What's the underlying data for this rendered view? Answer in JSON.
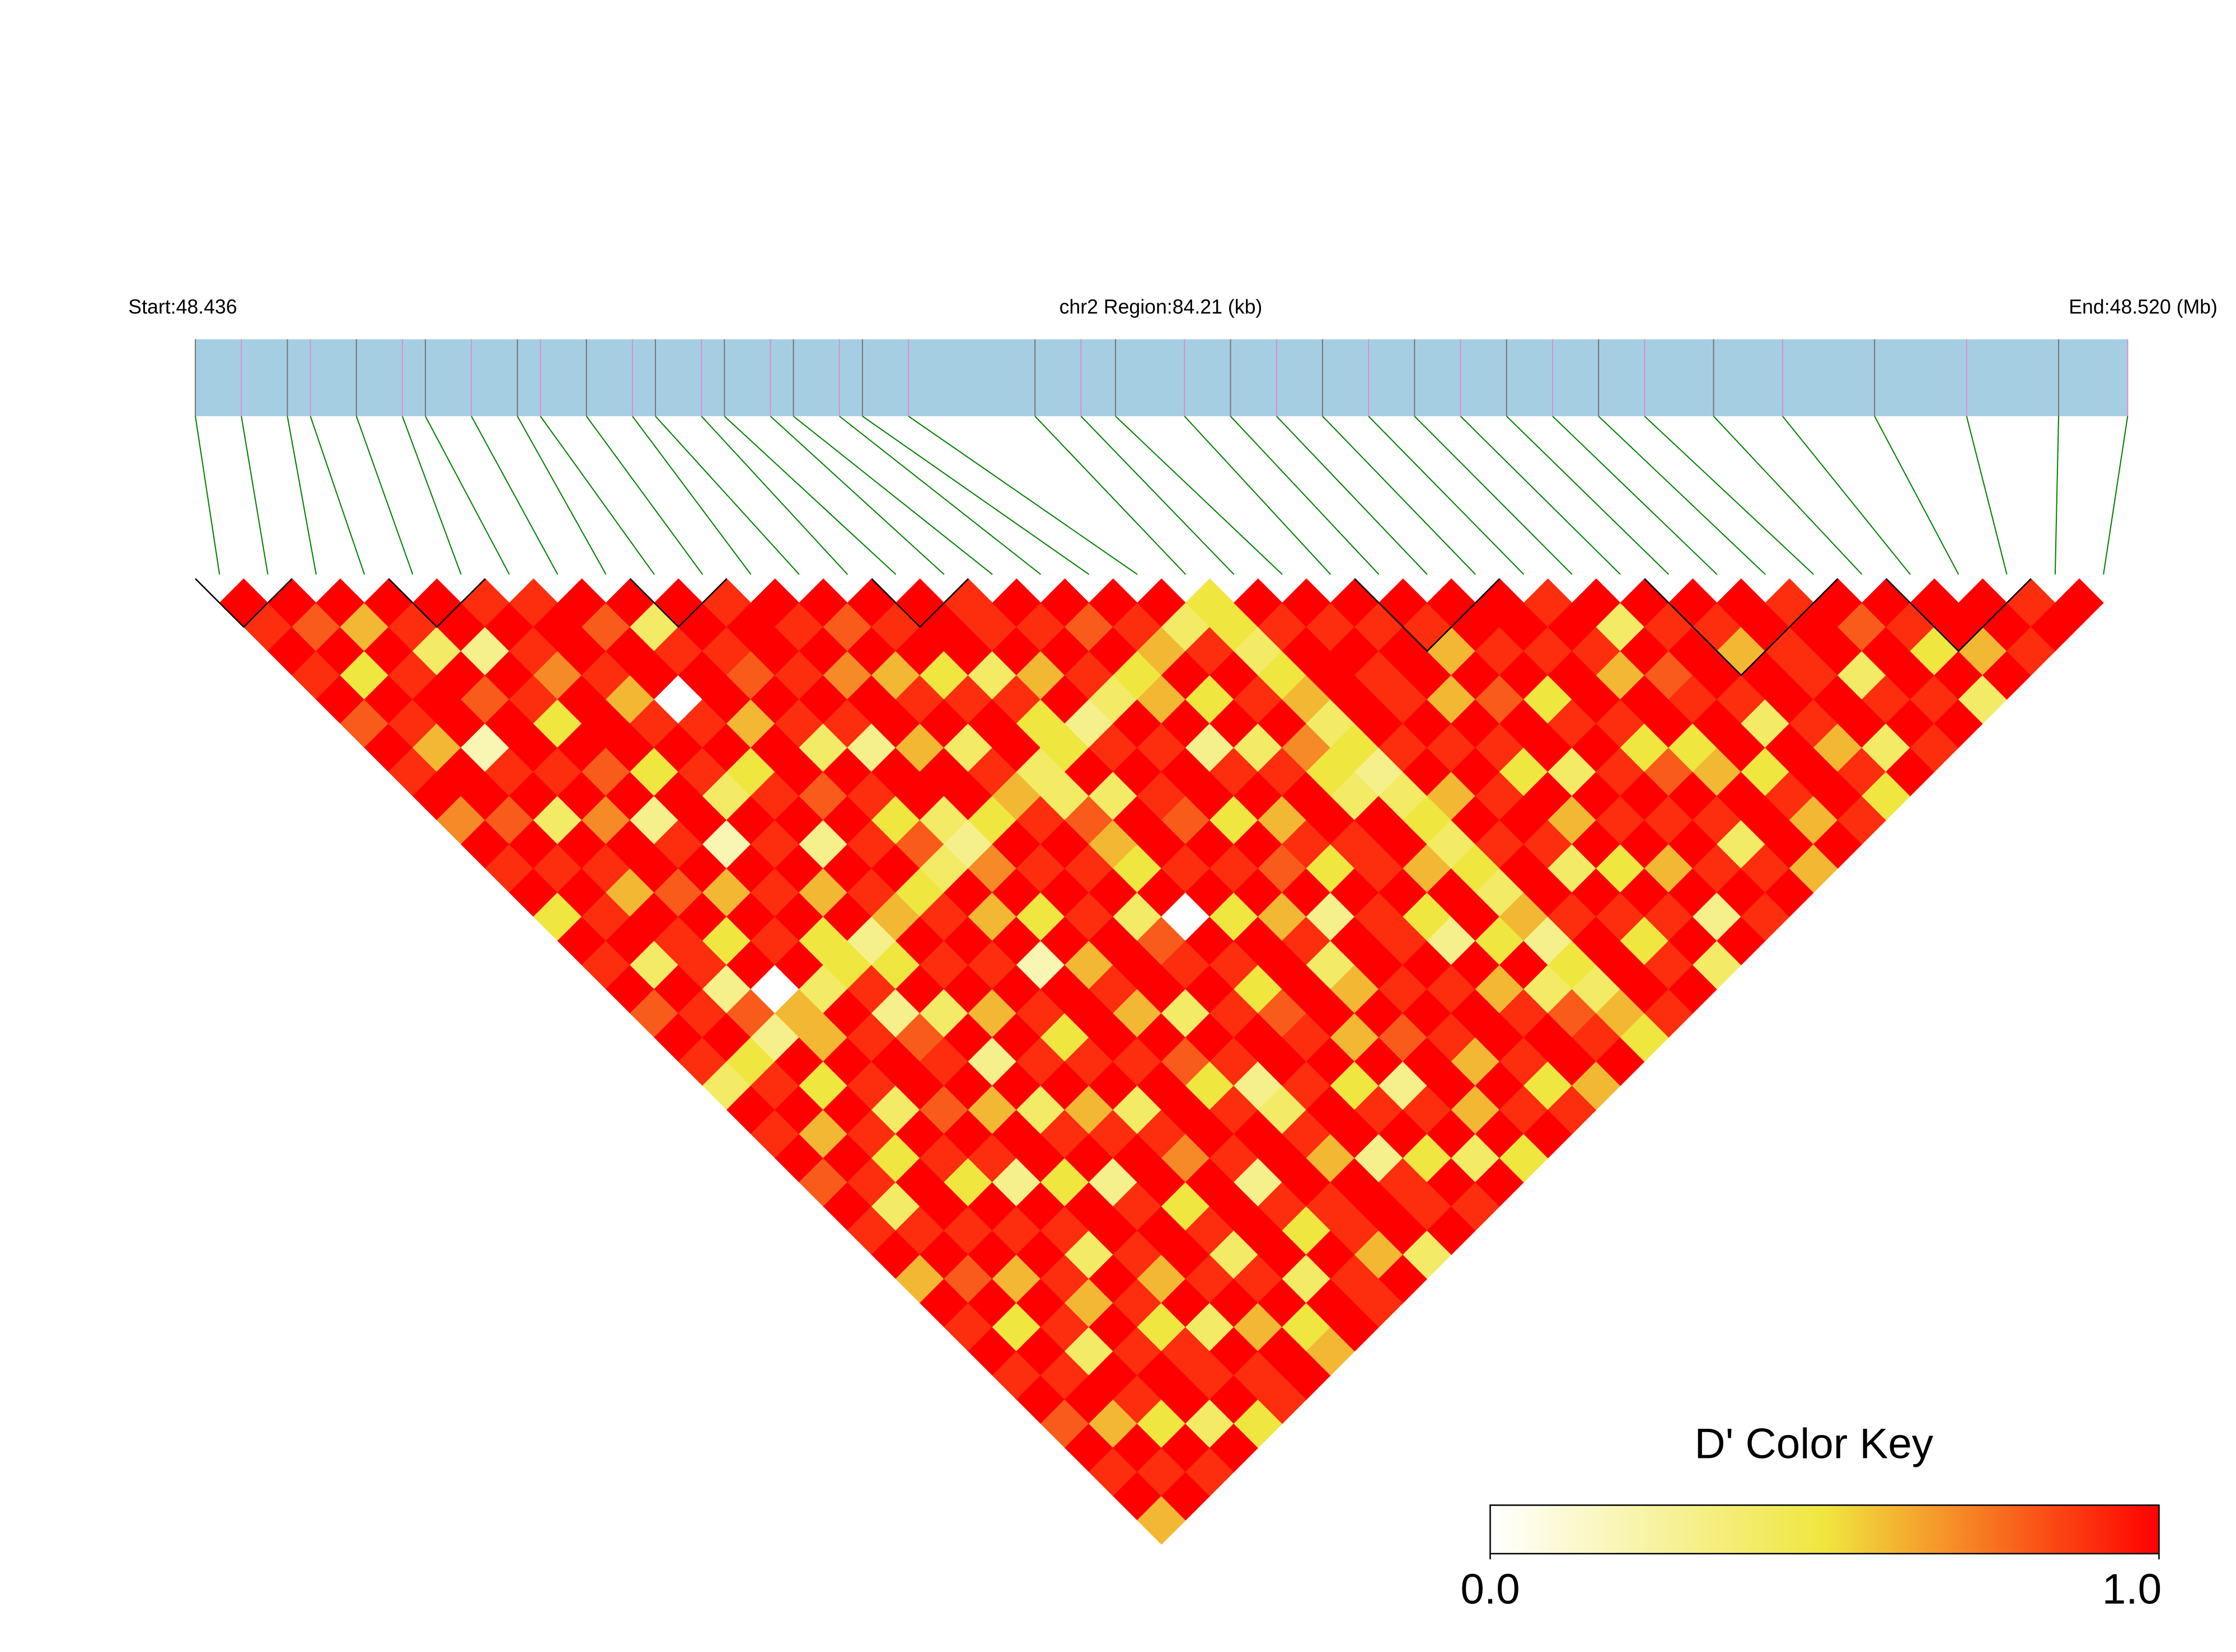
{
  "chart_data": {
    "type": "heatmap",
    "title": "chr2 Region:84.21 (kb)",
    "start_label": "Start:48.436",
    "end_label": "End:48.520 (Mb)",
    "xlim": [
      48.436,
      48.52
    ],
    "x": [
      48.436,
      48.438,
      48.44,
      48.441,
      48.443,
      48.445,
      48.446,
      48.448,
      48.45,
      48.451,
      48.453,
      48.455,
      48.456,
      48.458,
      48.459,
      48.461,
      48.462,
      48.464,
      48.465,
      48.467,
      48.4725,
      48.4745,
      48.476,
      48.479,
      48.481,
      48.483,
      48.485,
      48.487,
      48.489,
      48.491,
      48.493,
      48.495,
      48.497,
      48.499,
      48.502,
      48.505,
      48.509,
      48.513,
      48.517,
      48.52
    ],
    "matrix": [
      [
        1
      ],
      [
        0.9,
        1
      ],
      [
        1,
        0.8,
        1
      ],
      [
        0.9,
        1,
        0.6,
        1
      ],
      [
        1,
        0.5,
        1,
        0.9,
        1
      ],
      [
        0.8,
        1,
        0.9,
        0.4,
        1,
        0.9
      ],
      [
        1,
        0.9,
        1,
        1,
        0.3,
        1,
        0.9
      ],
      [
        0.9,
        0.6,
        1,
        0.8,
        1,
        0.9,
        1,
        1
      ],
      [
        1,
        1,
        0.2,
        1,
        0.9,
        0.7,
        1,
        0.8,
        1
      ],
      [
        0.7,
        1,
        0.9,
        1,
        0.5,
        1,
        0.9,
        1,
        0.4,
        1
      ],
      [
        1,
        0.8,
        1,
        0.9,
        1,
        1,
        0.6,
        1,
        0.9,
        1,
        0.9
      ],
      [
        0.9,
        1,
        0.4,
        1,
        0.8,
        1,
        0.9,
        0,
        1,
        0.9,
        1,
        1
      ],
      [
        1,
        0.9,
        1,
        0.7,
        1,
        0.5,
        1,
        0.9,
        1,
        0.8,
        1,
        0.9,
        1
      ],
      [
        0.5,
        1,
        0.9,
        1,
        0.3,
        1,
        0.9,
        1,
        0.6,
        1,
        0.9,
        1,
        0.8,
        1
      ],
      [
        1,
        0.9,
        0.6,
        1,
        0.9,
        1,
        0.4,
        0.5,
        1,
        0.9,
        1,
        0.7,
        1,
        0.9,
        1
      ],
      [
        0.9,
        1,
        1,
        0.8,
        1,
        0.2,
        1,
        0.9,
        1,
        0.4,
        0.9,
        1,
        0.6,
        1,
        1,
        0.9
      ],
      [
        1,
        0.4,
        0.9,
        1,
        0.6,
        1,
        0.9,
        1,
        0.8,
        1,
        0.3,
        1,
        0.9,
        0.5,
        1,
        0.9,
        1
      ],
      [
        0.8,
        1,
        0.9,
        0.5,
        1,
        0.9,
        1,
        0.3,
        1,
        0.9,
        1,
        0.6,
        1,
        0.9,
        0.4,
        1,
        0.9,
        1
      ],
      [
        1,
        0.9,
        0.3,
        1,
        0.9,
        1,
        0.6,
        1,
        0.9,
        0.5,
        1,
        1,
        0.4,
        1,
        0.9,
        0.6,
        1,
        0.8,
        1
      ],
      [
        0.9,
        1,
        0.8,
        0,
        1,
        0.5,
        1,
        0.9,
        1,
        0.8,
        0.4,
        1,
        0.9,
        1,
        0.5,
        1,
        0.9,
        1,
        0.9,
        1
      ],
      [
        0.4,
        0.5,
        0.3,
        0.6,
        0.4,
        0.5,
        0.3,
        0.6,
        0.5,
        0.4,
        0.3,
        0.5,
        0.6,
        0.4,
        0.5,
        0.3,
        0.4,
        0.5,
        0.6,
        0.4,
        0.5
      ],
      [
        1,
        0.9,
        1,
        0.6,
        1,
        0.9,
        0.5,
        1,
        0.9,
        1,
        0.7,
        1,
        0.9,
        0.4,
        1,
        0.9,
        1,
        0.6,
        1,
        0.9,
        0.5,
        1
      ],
      [
        0.9,
        1,
        0.5,
        1,
        0.9,
        0.3,
        1,
        0.9,
        1,
        0.6,
        1,
        0.9,
        1,
        0.8,
        0.4,
        1,
        0.9,
        1,
        0.5,
        1,
        0.4,
        0.9,
        1
      ],
      [
        1,
        0.6,
        1,
        0.9,
        1,
        0.8,
        0.4,
        1,
        0.9,
        1,
        0.5,
        1,
        0.9,
        0.6,
        1,
        0.9,
        1,
        0.3,
        1,
        0.9,
        0.5,
        1,
        0.9,
        1
      ],
      [
        0.8,
        1,
        0.9,
        0.4,
        1,
        0.9,
        1,
        0.6,
        1,
        0.2,
        1,
        0.9,
        1,
        0.5,
        1,
        0.8,
        1,
        0.9,
        0.4,
        1,
        0.6,
        1,
        1,
        0.9,
        1
      ],
      [
        1,
        0.9,
        0.5,
        1,
        0.8,
        1,
        0.3,
        1,
        0.9,
        1,
        0.6,
        1,
        0.4,
        1,
        0.9,
        1,
        0.5,
        1,
        0.9,
        0.7,
        0.4,
        1,
        0.9,
        1,
        0.9,
        1
      ],
      [
        0.9,
        0.4,
        1,
        0.9,
        1,
        0.6,
        1,
        0.9,
        0.5,
        1,
        0.9,
        1,
        0.8,
        0,
        1,
        0.9,
        1,
        0.6,
        1,
        0.5,
        0.5,
        1,
        0.9,
        1,
        0.6,
        1,
        1
      ],
      [
        1,
        0.9,
        1,
        0.5,
        0.9,
        1,
        0.4,
        1,
        0.9,
        1,
        0.6,
        1,
        0.9,
        1,
        0.5,
        1,
        0.8,
        0.9,
        1,
        0.4,
        0.3,
        0.9,
        1,
        0.6,
        1,
        0.9,
        1,
        0.9
      ],
      [
        0.6,
        1,
        0.9,
        1,
        0.3,
        1,
        0.9,
        0.6,
        1,
        0.9,
        1,
        0.4,
        1,
        0.9,
        1,
        0.6,
        1,
        0.5,
        0.9,
        1,
        0.4,
        1,
        0.9,
        1,
        0.8,
        1,
        0.9,
        1,
        1
      ],
      [
        1,
        0.8,
        1,
        0.9,
        1,
        0.5,
        1,
        0.9,
        0.4,
        1,
        0.8,
        1,
        0.9,
        0.5,
        1,
        0.9,
        0.3,
        1,
        0.9,
        1,
        0.5,
        0.6,
        1,
        0.9,
        1,
        0.5,
        1,
        0.9,
        0.4,
        1
      ],
      [
        0.9,
        1,
        0.6,
        1,
        0.9,
        1,
        0.3,
        1,
        0.9,
        1,
        0.5,
        0.9,
        1,
        0.8,
        1,
        0.4,
        1,
        0.9,
        1,
        0.6,
        0.4,
        1,
        0.9,
        0.5,
        1,
        0.9,
        1,
        0.6,
        1,
        0.9,
        1
      ],
      [
        1,
        0.5,
        1,
        0.9,
        0.4,
        1,
        0.9,
        1,
        0.7,
        1,
        0.9,
        0.3,
        1,
        0.9,
        1,
        0.6,
        1,
        0.9,
        0.5,
        1,
        0.5,
        0.9,
        1,
        1,
        0.4,
        1,
        0.9,
        1,
        0.8,
        1,
        0.9,
        1
      ],
      [
        0.9,
        1,
        0.9,
        0.6,
        1,
        0.9,
        1,
        0.5,
        1,
        0.9,
        1,
        0.4,
        0.9,
        1,
        0.6,
        1,
        0.9,
        1,
        0.3,
        1,
        0.4,
        1,
        0.9,
        0.6,
        1,
        0.9,
        0.5,
        1,
        0.9,
        1,
        0.6,
        1,
        0.9
      ],
      [
        1,
        0.9,
        0.4,
        1,
        0.9,
        0.6,
        1,
        0.9,
        1,
        0.3,
        1,
        0.9,
        1,
        0.5,
        1,
        0.8,
        1,
        0.9,
        1,
        0.5,
        0.6,
        1,
        0.4,
        1,
        0.9,
        1,
        0.8,
        0.5,
        1,
        0.9,
        1,
        0.9,
        1,
        1
      ],
      [
        0.8,
        1,
        1,
        0.9,
        0.5,
        1,
        0.9,
        0.4,
        1,
        0.9,
        1,
        0.6,
        1,
        0.9,
        0.3,
        1,
        0.9,
        1,
        0.6,
        1,
        0.3,
        0.9,
        1,
        0.5,
        1,
        0.9,
        1,
        0.6,
        1,
        0.4,
        1,
        0.9,
        1,
        0.8,
        1
      ],
      [
        1,
        0.6,
        0.9,
        1,
        0.9,
        0.4,
        1,
        0.9,
        1,
        0.5,
        0.9,
        1,
        0.3,
        1,
        0.9,
        1,
        0.6,
        1,
        0.9,
        0.4,
        0.5,
        1,
        0.9,
        1,
        0.6,
        1,
        0.9,
        1,
        0.5,
        1,
        0.9,
        1,
        0.4,
        1,
        0.9,
        1
      ],
      [
        0.9,
        1,
        0.5,
        1,
        0.9,
        1,
        0.6,
        1,
        0.4,
        1,
        0.9,
        1,
        0.9,
        0.5,
        1,
        0.6,
        1,
        0.9,
        1,
        0.8,
        0.4,
        1,
        0.5,
        0.9,
        1,
        0.9,
        0.4,
        1,
        0.9,
        1,
        0.6,
        1,
        0.9,
        1,
        0.5,
        1,
        1
      ],
      [
        1,
        0.9,
        1,
        0.4,
        1,
        0.9,
        1,
        0.5,
        1,
        0.9,
        0.6,
        1,
        0.9,
        1,
        0.4,
        1,
        0.9,
        0.5,
        1,
        0.9,
        0.6,
        1,
        0.9,
        1,
        0.3,
        1,
        0.9,
        1,
        0.6,
        1,
        0.9,
        0.4,
        1,
        0.9,
        1,
        0.6,
        1,
        0.9
      ],
      [
        0.6,
        1,
        0.9,
        1,
        0.5,
        0.9,
        1,
        0.6,
        1,
        0.9,
        1,
        0.4,
        1,
        0.9,
        1,
        0.5,
        1,
        0.9,
        0.6,
        1,
        0.5,
        0.9,
        1,
        0.4,
        1,
        0.9,
        1,
        0.6,
        1,
        0.9,
        0.5,
        1,
        0.9,
        1,
        0.4,
        1,
        0.9,
        1,
        1
      ]
    ],
    "blocks": [
      [
        0,
        1
      ],
      [
        4,
        5
      ],
      [
        9,
        10
      ],
      [
        14,
        15
      ],
      [
        24,
        26
      ],
      [
        30,
        33
      ],
      [
        35,
        37
      ]
    ],
    "bar_color": "#a6cee3",
    "link_color": "#008000",
    "colors": [
      "#ffffff",
      "#f0e640",
      "#ff0000"
    ],
    "key_title": "D' Color Key",
    "key_lim": [
      0,
      1
    ],
    "key_ticks": [
      {
        "value": 0,
        "label": "0.0"
      },
      {
        "value": 1,
        "label": "1.0"
      }
    ]
  }
}
